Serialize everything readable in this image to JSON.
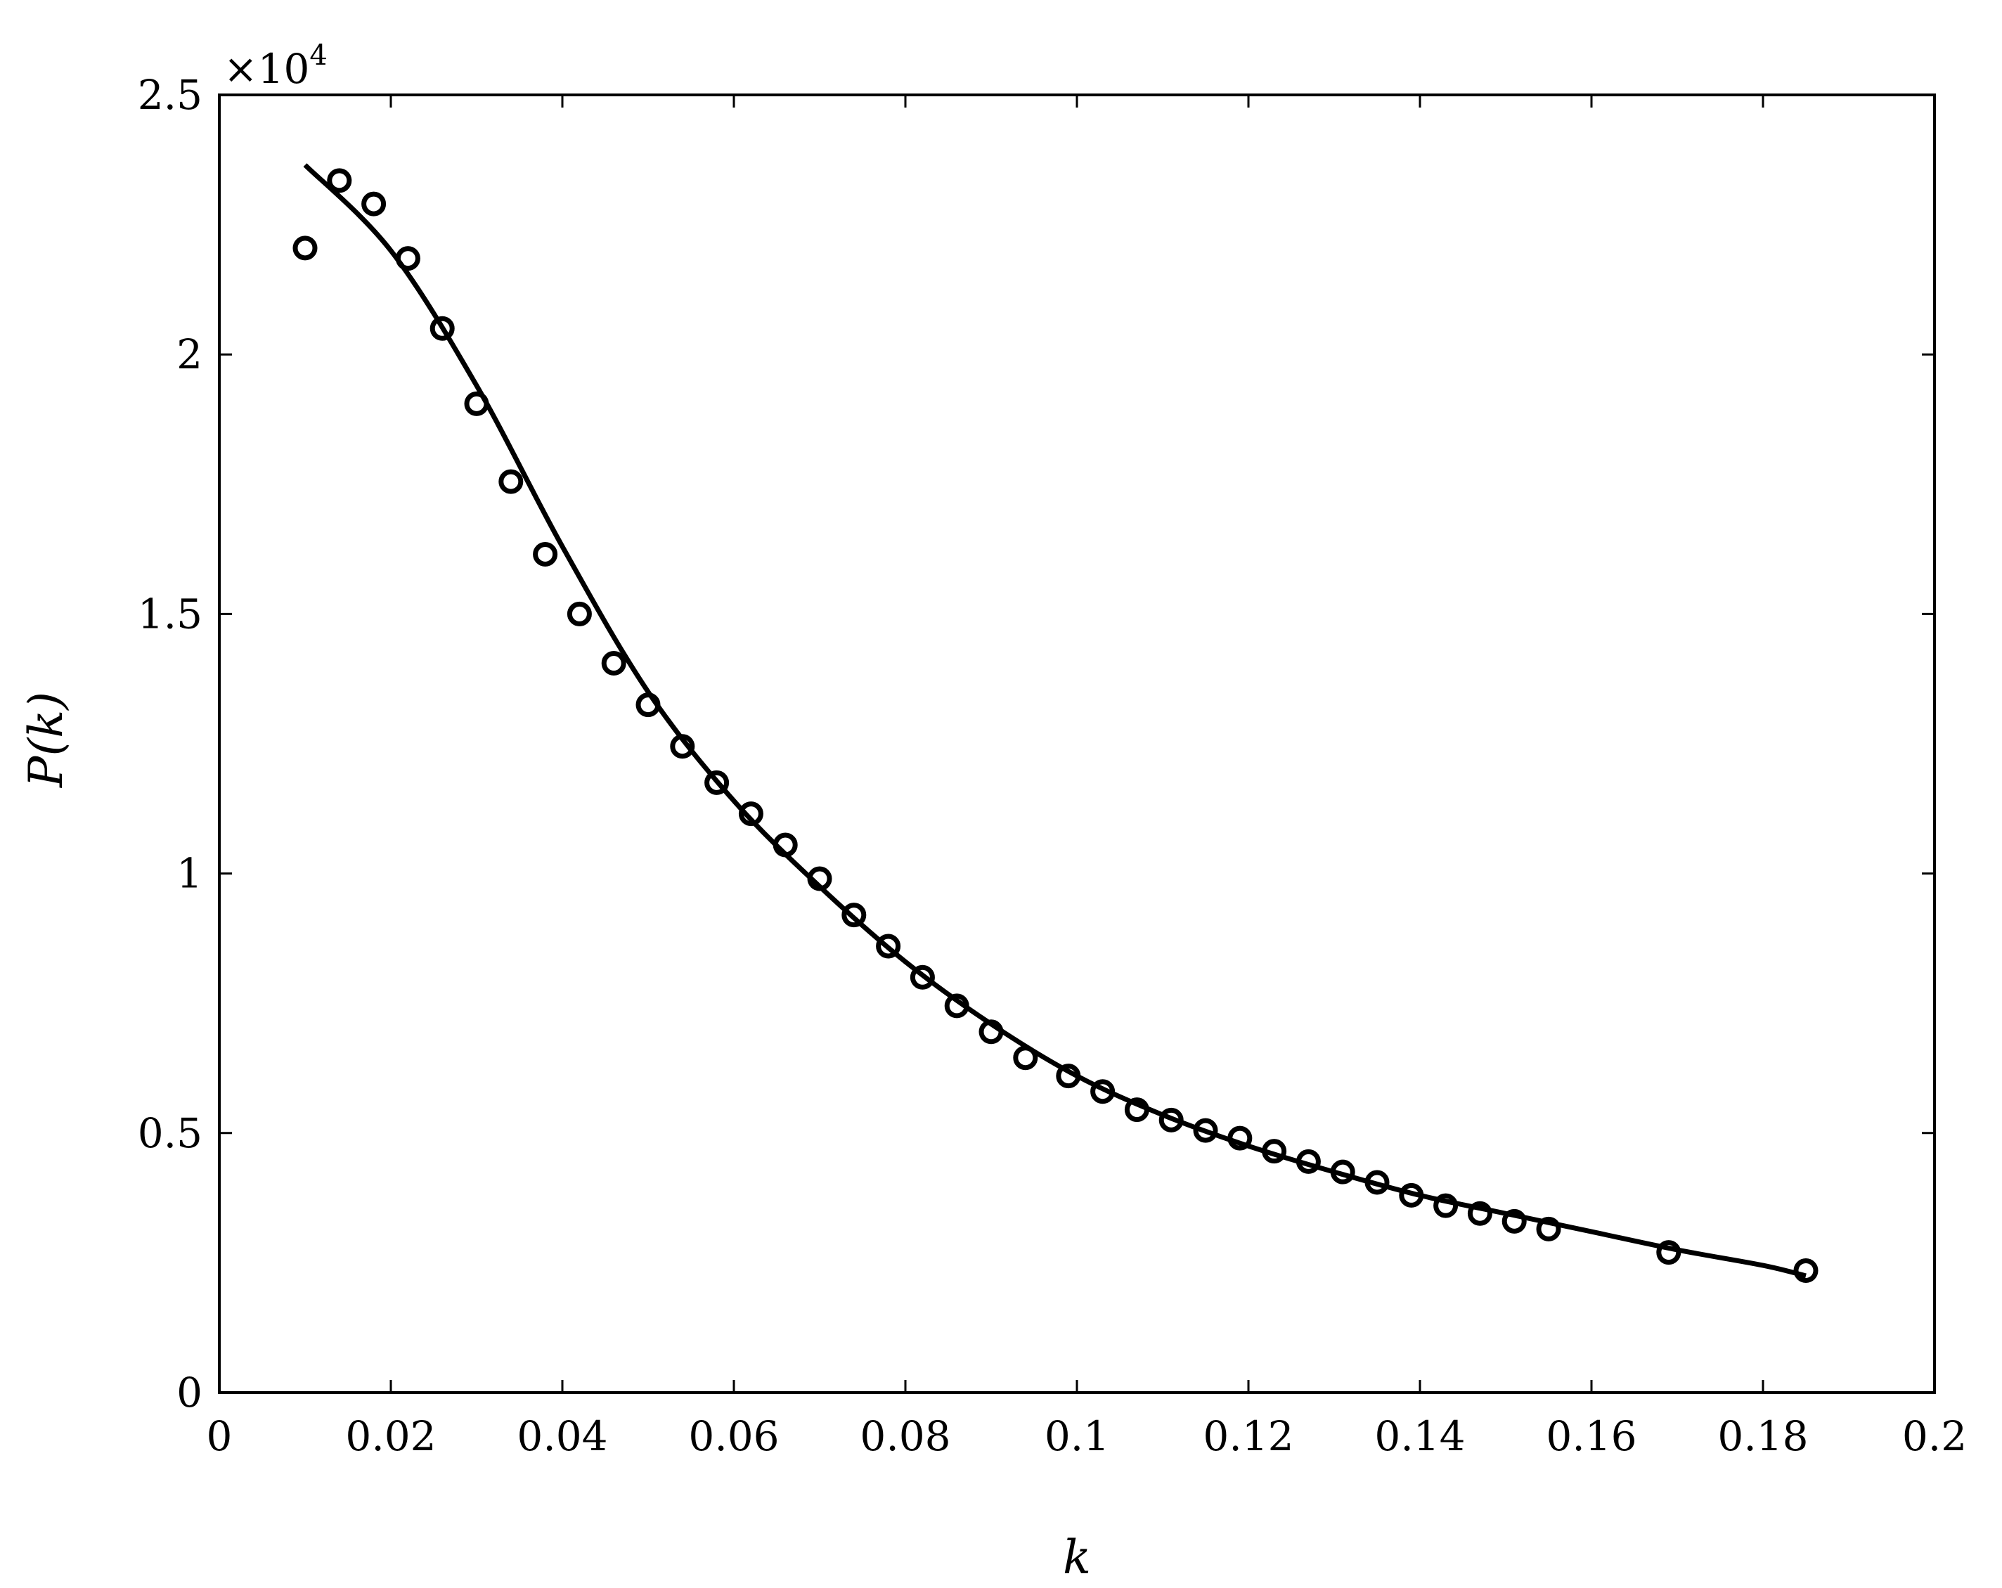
{
  "chart_data": {
    "type": "scatter",
    "xlabel": "k",
    "ylabel": "P(k)",
    "y_exponent_label": "×10",
    "y_exponent_power": "4",
    "xlim": [
      0,
      0.2
    ],
    "ylim": [
      0,
      2.5
    ],
    "x_ticks": [
      "0",
      "0.02",
      "0.04",
      "0.06",
      "0.08",
      "0.1",
      "0.12",
      "0.14",
      "0.16",
      "0.18",
      "0.2"
    ],
    "y_ticks": [
      "0",
      "0.5",
      "1",
      "1.5",
      "2",
      "2.5"
    ],
    "grid": false,
    "series": [
      {
        "marker": "circle",
        "x": [
          0.01,
          0.014,
          0.018,
          0.022,
          0.026,
          0.03,
          0.034,
          0.038,
          0.042,
          0.046,
          0.05,
          0.054,
          0.058,
          0.062,
          0.066,
          0.07,
          0.074,
          0.078,
          0.082,
          0.086,
          0.09,
          0.094,
          0.099,
          0.103,
          0.107,
          0.111,
          0.115,
          0.119,
          0.123,
          0.127,
          0.131,
          0.135,
          0.139,
          0.143,
          0.147,
          0.151,
          0.155,
          0.169,
          0.185
        ],
        "y": [
          2.205,
          2.335,
          2.29,
          2.185,
          2.05,
          1.905,
          1.755,
          1.615,
          1.5,
          1.405,
          1.325,
          1.245,
          1.175,
          1.115,
          1.055,
          0.99,
          0.92,
          0.86,
          0.8,
          0.745,
          0.695,
          0.645,
          0.61,
          0.58,
          0.545,
          0.525,
          0.505,
          0.49,
          0.465,
          0.445,
          0.425,
          0.405,
          0.38,
          0.36,
          0.345,
          0.33,
          0.315,
          0.27,
          0.235
        ]
      },
      {
        "marker": "line",
        "x": [
          0.01,
          0.02,
          0.03,
          0.04,
          0.05,
          0.06,
          0.07,
          0.08,
          0.09,
          0.1,
          0.11,
          0.12,
          0.13,
          0.14,
          0.15,
          0.16,
          0.17,
          0.18,
          0.185
        ],
        "y": [
          2.365,
          2.2,
          1.94,
          1.63,
          1.35,
          1.14,
          0.975,
          0.83,
          0.71,
          0.61,
          0.535,
          0.475,
          0.425,
          0.38,
          0.345,
          0.31,
          0.275,
          0.245,
          0.225
        ]
      }
    ]
  }
}
